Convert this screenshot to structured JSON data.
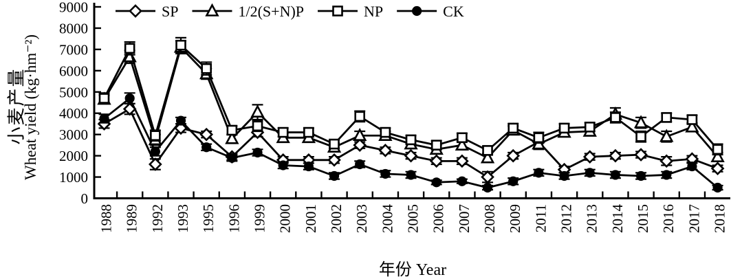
{
  "figure": {
    "background": "#ffffff",
    "axis_color": "#000000"
  },
  "labels": {
    "y_cn": "小麦产量",
    "y_en": "Wheat yield (kg·hm⁻²)",
    "x": "年份 Year"
  },
  "chart_data": {
    "type": "line",
    "title": "",
    "xlabel": "年份 Year",
    "ylabel": "小麦产量 Wheat yield (kg·hm⁻²)",
    "ylim": [
      0,
      9000
    ],
    "y_ticks": [
      0,
      1000,
      2000,
      3000,
      4000,
      5000,
      6000,
      7000,
      8000,
      9000
    ],
    "grid": false,
    "legend_position": "top-inside",
    "line_color": "#000000",
    "error_bars": true,
    "categories": [
      "1988",
      "1989",
      "1992",
      "1993",
      "1995",
      "1996",
      "1999",
      "2000",
      "2001",
      "2002",
      "2003",
      "2004",
      "2005",
      "2006",
      "2007",
      "2008",
      "2009",
      "2011",
      "2012",
      "2013",
      "2014",
      "2015",
      "2016",
      "2017",
      "2018"
    ],
    "series": [
      {
        "name": "SP",
        "marker": "diamond-open",
        "values": [
          3500,
          4200,
          1600,
          3300,
          3000,
          1950,
          3100,
          1800,
          1800,
          1800,
          2500,
          2250,
          2000,
          1750,
          1750,
          1000,
          2000,
          2650,
          1350,
          1950,
          2000,
          2050,
          1750,
          1850,
          1400
        ],
        "yerr": [
          200,
          250,
          250,
          200,
          150,
          150,
          200,
          150,
          150,
          150,
          150,
          150,
          150,
          150,
          150,
          250,
          150,
          250,
          150,
          150,
          150,
          150,
          200,
          150,
          150
        ]
      },
      {
        "name": "1/2(S+N)P",
        "marker": "triangle-open",
        "values": [
          4650,
          6650,
          2750,
          7100,
          5850,
          2800,
          4050,
          2850,
          2850,
          2400,
          2950,
          2950,
          2550,
          2300,
          2500,
          1900,
          3200,
          2550,
          3100,
          3150,
          3950,
          3550,
          2900,
          3350,
          1950
        ],
        "yerr": [
          200,
          300,
          250,
          300,
          250,
          200,
          350,
          200,
          200,
          200,
          200,
          200,
          200,
          200,
          200,
          200,
          200,
          250,
          200,
          200,
          300,
          250,
          250,
          200,
          200
        ]
      },
      {
        "name": "NP",
        "marker": "square-open",
        "values": [
          4700,
          7050,
          2950,
          7200,
          6100,
          3200,
          3400,
          3100,
          3100,
          2550,
          3850,
          3100,
          2750,
          2500,
          2850,
          2250,
          3300,
          2850,
          3300,
          3350,
          3800,
          2900,
          3800,
          3700,
          2300
        ],
        "yerr": [
          250,
          300,
          250,
          350,
          300,
          200,
          250,
          200,
          200,
          200,
          250,
          200,
          200,
          200,
          200,
          200,
          200,
          250,
          200,
          200,
          250,
          250,
          200,
          200,
          250
        ]
      },
      {
        "name": "CK",
        "marker": "circle-filled",
        "values": [
          3750,
          4700,
          2200,
          3650,
          2400,
          1900,
          2150,
          1550,
          1500,
          1050,
          1600,
          1150,
          1100,
          750,
          800,
          500,
          800,
          1200,
          1050,
          1200,
          1100,
          1050,
          1100,
          1500,
          500
        ],
        "yerr": [
          200,
          250,
          200,
          150,
          150,
          150,
          150,
          150,
          150,
          150,
          150,
          150,
          150,
          100,
          100,
          100,
          150,
          150,
          150,
          150,
          150,
          150,
          150,
          150,
          100
        ]
      }
    ]
  }
}
